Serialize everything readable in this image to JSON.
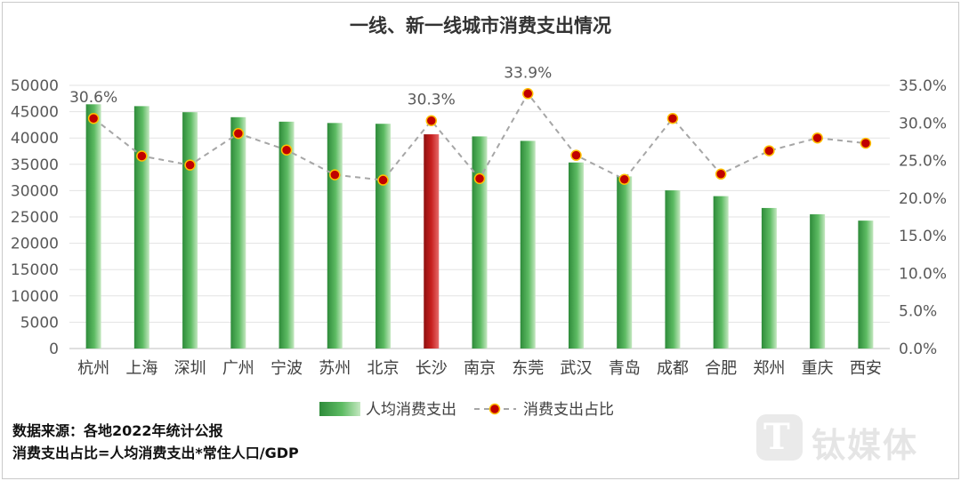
{
  "chart_data": {
    "type": "bar+line",
    "title": "一线、新一线城市消费支出情况",
    "categories": [
      "杭州",
      "上海",
      "深圳",
      "广州",
      "宁波",
      "苏州",
      "北京",
      "长沙",
      "南京",
      "东莞",
      "武汉",
      "青岛",
      "成都",
      "合肥",
      "郑州",
      "重庆",
      "西安"
    ],
    "series": [
      {
        "name": "人均消费支出",
        "type": "bar",
        "axis": "left",
        "values": [
          46400,
          46050,
          44900,
          43950,
          43100,
          42850,
          42700,
          40700,
          40300,
          39450,
          35350,
          32700,
          30050,
          28950,
          26700,
          25500,
          24300
        ],
        "highlight_index": 7
      },
      {
        "name": "消费支出占比",
        "type": "line",
        "axis": "right",
        "values": [
          30.6,
          25.6,
          24.4,
          28.6,
          26.4,
          23.1,
          22.4,
          30.3,
          22.6,
          33.9,
          25.7,
          22.5,
          30.6,
          23.2,
          26.3,
          28.0,
          27.3
        ]
      }
    ],
    "data_labels": [
      {
        "index": 0,
        "text": "30.6%"
      },
      {
        "index": 7,
        "text": "30.3%"
      },
      {
        "index": 9,
        "text": "33.9%"
      }
    ],
    "y_left": {
      "min": 0,
      "max": 50000,
      "step": 5000,
      "ticks": [
        "0",
        "5000",
        "10000",
        "15000",
        "20000",
        "25000",
        "30000",
        "35000",
        "40000",
        "45000",
        "50000"
      ]
    },
    "y_right": {
      "min": 0,
      "max": 35,
      "step": 5,
      "ticks": [
        "0.0%",
        "5.0%",
        "10.0%",
        "15.0%",
        "20.0%",
        "25.0%",
        "30.0%",
        "35.0%"
      ]
    },
    "grid": true,
    "legend_position": "bottom",
    "colors": {
      "bar": "#5dbb63",
      "bar_dark": "#2e8b3a",
      "bar_light": "#c4e8c0",
      "highlight": "#c8201f",
      "line": "#a6a6a6",
      "marker": "#c00000",
      "marker_edge": "#ffc000"
    }
  },
  "notes": {
    "source": "数据来源：各地2022年统计公报",
    "formula": "消费支出占比=人均消费支出*常住人口/GDP"
  },
  "watermark": {
    "icon": "T",
    "text": "钛媒体"
  }
}
